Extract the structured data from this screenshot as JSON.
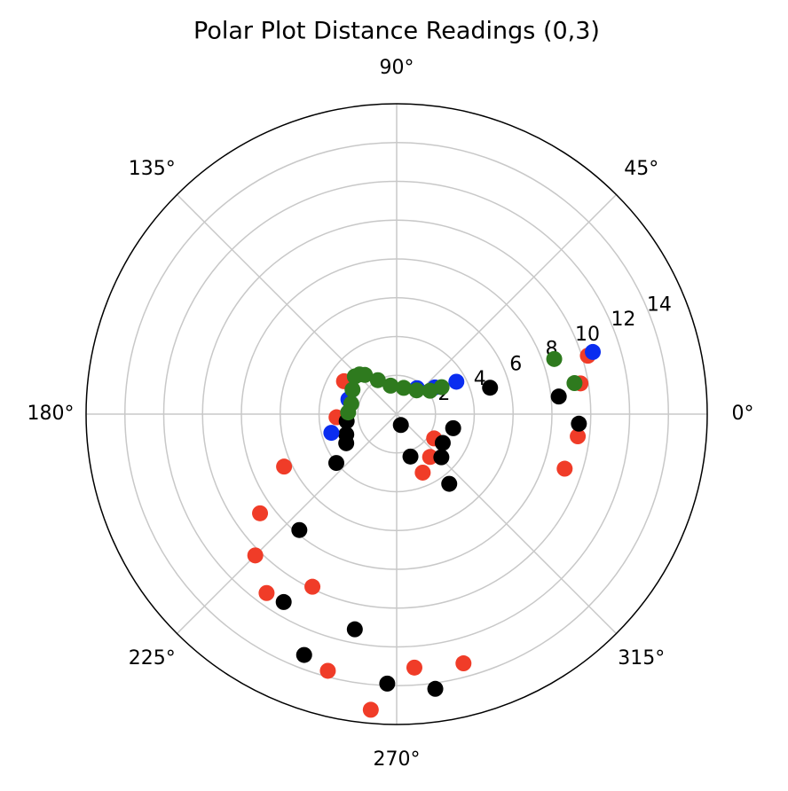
{
  "chart_data": {
    "type": "polar-scatter",
    "title": "Polar Plot Distance Readings (0,3)",
    "rlim": [
      0,
      16
    ],
    "rticks": [
      2,
      4,
      6,
      8,
      10,
      12,
      14
    ],
    "thetaticks": [
      {
        "value": 0,
        "label": "0°"
      },
      {
        "value": 45,
        "label": "45°"
      },
      {
        "value": 90,
        "label": "90°"
      },
      {
        "value": 135,
        "label": "135°"
      },
      {
        "value": 180,
        "label": "180°"
      },
      {
        "value": 225,
        "label": "225°"
      },
      {
        "value": 270,
        "label": "270°"
      },
      {
        "value": 315,
        "label": "315°"
      }
    ],
    "grid": true,
    "series": [
      {
        "color": "#f03c28",
        "theta": [
          353,
          342,
          9.5,
          17,
          294,
          308,
          327,
          205,
          216,
          225,
          234,
          244,
          255,
          265,
          274,
          285,
          183,
          148
        ],
        "values": [
          9.4,
          9.1,
          9.6,
          10.3,
          3.3,
          2.8,
          2.3,
          6.4,
          8.7,
          10.3,
          11.4,
          9.9,
          13.7,
          15.3,
          13.1,
          13.3,
          3.1,
          3.2
        ]
      },
      {
        "color": "#000000",
        "theta": [
          15.8,
          6.2,
          357,
          291,
          288,
          346,
          328,
          316,
          307,
          188,
          202,
          210,
          219,
          230,
          239,
          259,
          249,
          268,
          278
        ],
        "values": [
          5.0,
          8.4,
          9.4,
          0.6,
          2.3,
          3.0,
          2.8,
          3.2,
          4.5,
          2.6,
          2.8,
          3.0,
          4.0,
          7.8,
          11.3,
          11.3,
          13.3,
          13.9,
          14.3
        ]
      },
      {
        "color": "#0a2df0",
        "theta": [
          17.6,
          28.5,
          196,
          163,
          35,
          52
        ],
        "values": [
          10.6,
          3.5,
          3.5,
          2.6,
          2.4,
          1.7
        ]
      },
      {
        "color": "#2e7a1e",
        "theta": [
          19.3,
          9.9,
          138,
          133,
          129,
          151,
          167,
          119,
          102,
          75,
          50,
          35,
          31,
          178
        ],
        "values": [
          8.6,
          9.3,
          2.9,
          2.8,
          2.6,
          2.6,
          2.4,
          2.0,
          1.5,
          1.4,
          1.6,
          2.1,
          2.7,
          2.5
        ]
      }
    ]
  }
}
